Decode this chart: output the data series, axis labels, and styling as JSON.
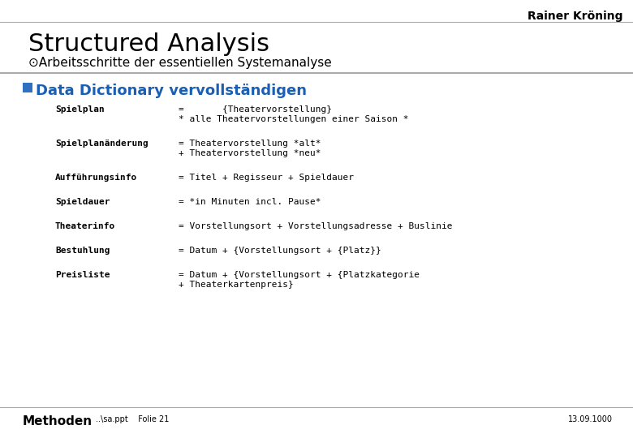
{
  "title": "Structured Analysis",
  "subtitle": "⊙Arbeitsschritte der essentiellen Systemanalyse",
  "author": "Rainer Kröning",
  "bullet_text": "Data Dictionary vervollständigen",
  "footer_left": "Methoden",
  "footer_middle": "..\\sa.ppt    Folie 21",
  "footer_right": "13.09.1000",
  "entries": [
    {
      "label": "Spielplan",
      "lines": [
        "=       {Theatervorstellung}",
        "* alle Theatervorstellungen einer Saison *"
      ]
    },
    {
      "label": "Spielplanänderung",
      "lines": [
        "= Theatervorstellung *alt*",
        "+ Theatervorstellung *neu*"
      ]
    },
    {
      "label": "Aufführungsinfo",
      "lines": [
        "= Titel + Regisseur + Spieldauer"
      ]
    },
    {
      "label": "Spieldauer",
      "lines": [
        "= *in Minuten incl. Pause*"
      ]
    },
    {
      "label": "Theaterinfo",
      "lines": [
        "= Vorstellungsort + Vorstellungsadresse + Buslinie"
      ]
    },
    {
      "label": "Bestuhlung",
      "lines": [
        "= Datum + {Vorstellungsort + {Platz}}"
      ]
    },
    {
      "label": "Preisliste",
      "lines": [
        "= Datum + {Vorstellungsort + {Platzkategorie",
        "+ Theaterkartenpreis}"
      ]
    }
  ],
  "bg_color": "#ffffff",
  "title_color": "#000000",
  "subtitle_color": "#000000",
  "bullet_color": "#1a5fb4",
  "bullet_square_color": "#3070c0",
  "label_color": "#000000",
  "value_color": "#000000",
  "footer_color": "#000000",
  "top_line_color": "#aaaaaa",
  "mid_line_color": "#999999",
  "footer_line_color": "#aaaaaa",
  "title_fontsize": 22,
  "subtitle_fontsize": 11,
  "bullet_fontsize": 13,
  "label_fontsize": 8,
  "value_fontsize": 8,
  "footer_fontsize": 9
}
